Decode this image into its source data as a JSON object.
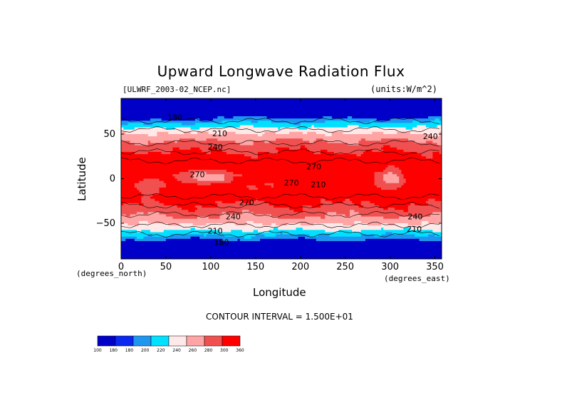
{
  "chart_data": {
    "type": "heatmap",
    "title": "Upward Longwave Radiation Flux",
    "file_label": "[ULWRF_2003-02_NCEP.nc]",
    "units_label": "(units:W/m^2)",
    "xlabel": "Longitude",
    "ylabel": "Latitude",
    "x_unit_label": "(degrees_east)",
    "y_unit_label": "(degrees_north)",
    "xlim": [
      0,
      357.5
    ],
    "ylim": [
      -90,
      90
    ],
    "x_ticks": [
      "0",
      "50",
      "100",
      "150",
      "200",
      "250",
      "300",
      "350"
    ],
    "x_tick_values": [
      0,
      50,
      100,
      150,
      200,
      250,
      300,
      350
    ],
    "y_ticks": [
      "50",
      "0",
      "−50"
    ],
    "y_tick_values": [
      50,
      0,
      -50
    ],
    "contour_interval_text": "CONTOUR INTERVAL = 1.500E+01",
    "contour_labels": [
      {
        "text": "180",
        "lon": 60,
        "lat": 68
      },
      {
        "text": "210",
        "lon": 110,
        "lat": 50
      },
      {
        "text": "240",
        "lon": 105,
        "lat": 35
      },
      {
        "text": "240",
        "lon": 345,
        "lat": 47
      },
      {
        "text": "270",
        "lon": 215,
        "lat": 13
      },
      {
        "text": "270",
        "lon": 85,
        "lat": 4
      },
      {
        "text": "270",
        "lon": 140,
        "lat": -27
      },
      {
        "text": "270",
        "lon": 190,
        "lat": -5
      },
      {
        "text": "210",
        "lon": 220,
        "lat": -7
      },
      {
        "text": "240",
        "lon": 125,
        "lat": -43
      },
      {
        "text": "240",
        "lon": 328,
        "lat": -43
      },
      {
        "text": "210",
        "lon": 105,
        "lat": -59
      },
      {
        "text": "210",
        "lon": 327,
        "lat": -57
      },
      {
        "text": "180",
        "lon": 112,
        "lat": -72
      }
    ],
    "colorbar": {
      "levels": [
        "100",
        "180",
        "180",
        "200",
        "220",
        "240",
        "260",
        "280",
        "300",
        "360"
      ],
      "colors": [
        "#0000c8",
        "#0a28f0",
        "#1e96f0",
        "#00e0ff",
        "#ffe8e8",
        "#ffa5a5",
        "#f05050",
        "#ff0000"
      ]
    }
  }
}
